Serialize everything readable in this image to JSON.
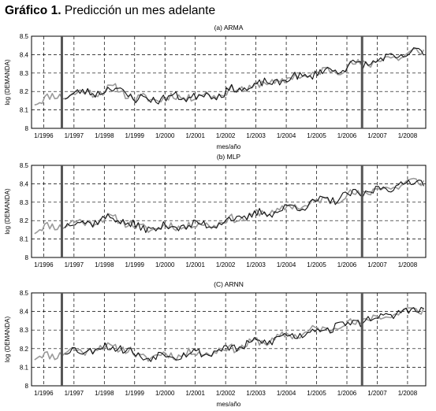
{
  "figure": {
    "title_prefix": "Gráfico 1.",
    "title_text": "Predicción un mes adelante",
    "colors": {
      "actual": "#9a9a9a",
      "forecast": "#111111",
      "marker": "#555555",
      "grid": "#000000"
    }
  },
  "chart_data": [
    {
      "type": "line",
      "title": "(a) ARMA",
      "xlabel": "mes/año",
      "ylabel": "log (DEMANDA)",
      "ylim": [
        8.0,
        8.5
      ],
      "yticks": [
        "8",
        "8.1",
        "8.2",
        "8.3",
        "8.4",
        "8.5"
      ],
      "xlim": [
        1995.6,
        2008.6
      ],
      "xticks": [
        {
          "value": 1996.0,
          "label": "1/1996"
        },
        {
          "value": 1997.0,
          "label": "1/1997"
        },
        {
          "value": 1998.0,
          "label": "1/1998"
        },
        {
          "value": 1999.0,
          "label": "1/1999"
        },
        {
          "value": 2000.0,
          "label": "1/2000"
        },
        {
          "value": 2001.0,
          "label": "1/2001"
        },
        {
          "value": 2002.0,
          "label": "1/2002"
        },
        {
          "value": 2003.0,
          "label": "1/2003"
        },
        {
          "value": 2004.0,
          "label": "1/2004"
        },
        {
          "value": 2005.0,
          "label": "1/2005"
        },
        {
          "value": 2006.0,
          "label": "1/2006"
        },
        {
          "value": 2007.0,
          "label": "1/2007"
        },
        {
          "value": 2008.0,
          "label": "1/2008"
        }
      ],
      "grid": true,
      "markers": [
        1996.6,
        2006.5
      ],
      "series": [
        {
          "role": "actual",
          "noise_seed": 11
        },
        {
          "role": "forecast",
          "start": 1996.7,
          "noise_seed": 23
        }
      ]
    },
    {
      "type": "line",
      "title": "(b) MLP",
      "xlabel": "",
      "ylabel": "log (DEMANDA)",
      "ylim": [
        8.0,
        8.5
      ],
      "yticks": [
        "8",
        "8.1",
        "8.2",
        "8.3",
        "8.4",
        "8.5"
      ],
      "xlim": [
        1995.6,
        2008.6
      ],
      "xticks": [
        {
          "value": 1996.0,
          "label": "1/1996"
        },
        {
          "value": 1997.0,
          "label": "1/1997"
        },
        {
          "value": 1998.0,
          "label": "1/1998"
        },
        {
          "value": 1999.0,
          "label": "1/1999"
        },
        {
          "value": 2000.0,
          "label": "1/2000"
        },
        {
          "value": 2001.0,
          "label": "1/2001"
        },
        {
          "value": 2002.0,
          "label": "1/2002"
        },
        {
          "value": 2003.0,
          "label": "1/2003"
        },
        {
          "value": 2004.0,
          "label": "1/2004"
        },
        {
          "value": 2005.0,
          "label": "1/2005"
        },
        {
          "value": 2006.0,
          "label": "1/2006"
        },
        {
          "value": 2007.0,
          "label": "1/2007"
        },
        {
          "value": 2008.0,
          "label": "1/2008"
        }
      ],
      "grid": true,
      "markers": [
        1996.6,
        2006.5
      ],
      "series": [
        {
          "role": "actual",
          "noise_seed": 11
        },
        {
          "role": "forecast",
          "start": 1996.7,
          "noise_seed": 37
        }
      ]
    },
    {
      "type": "line",
      "title": "(C) ARNN",
      "xlabel": "mes/año",
      "ylabel": "log (DEMANDA)",
      "ylim": [
        8.0,
        8.5
      ],
      "yticks": [
        "8",
        "8.1",
        "8.2",
        "8.3",
        "8.4",
        "8.5"
      ],
      "xlim": [
        1995.6,
        2008.6
      ],
      "xticks": [
        {
          "value": 1996.0,
          "label": "1/1996"
        },
        {
          "value": 1997.0,
          "label": "1/1997"
        },
        {
          "value": 1998.0,
          "label": "1/1998"
        },
        {
          "value": 1999.0,
          "label": "1/1999"
        },
        {
          "value": 2000.0,
          "label": "1/2000"
        },
        {
          "value": 2001.0,
          "label": "1/2001"
        },
        {
          "value": 2002.0,
          "label": "1/2002"
        },
        {
          "value": 2003.0,
          "label": "1/2003"
        },
        {
          "value": 2004.0,
          "label": "1/2004"
        },
        {
          "value": 2005.0,
          "label": "1/2005"
        },
        {
          "value": 2006.0,
          "label": "1/2006"
        },
        {
          "value": 2007.0,
          "label": "1/2007"
        },
        {
          "value": 2008.0,
          "label": "1/2008"
        }
      ],
      "grid": true,
      "markers": [
        1996.6,
        2006.5
      ],
      "series": [
        {
          "role": "actual",
          "noise_seed": 11
        },
        {
          "role": "forecast",
          "start": 1996.7,
          "noise_seed": 53
        }
      ]
    }
  ]
}
